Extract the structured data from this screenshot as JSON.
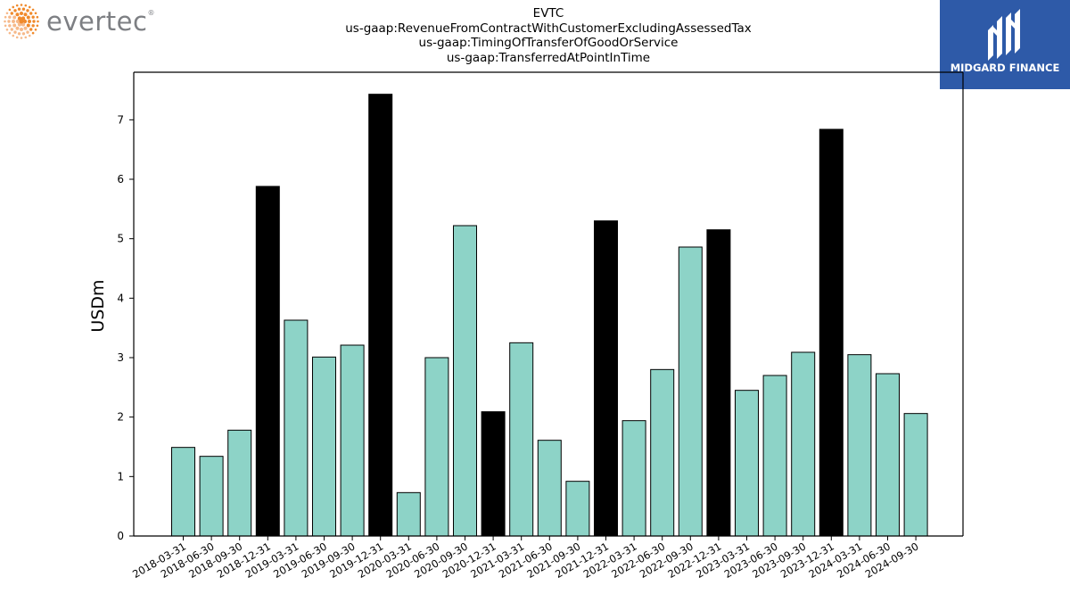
{
  "header": {
    "ticker": "EVTC",
    "concept": "us-gaap:RevenueFromContractWithCustomerExcludingAssessedTax",
    "axis": "us-gaap:TimingOfTransferOfGoodOrService",
    "member": "us-gaap:TransferredAtPointInTime"
  },
  "logos": {
    "left_name": "evertec",
    "left_mark": "®",
    "left_icon": "dot-sunburst-icon",
    "right_name": "MIDGARD FINANCE",
    "right_icon": "midgard-m-icon"
  },
  "colors": {
    "quarter_bar": "#8dd3c7",
    "year_end_bar": "#000000",
    "right_logo_bg": "#2e5aa8",
    "left_logo_accent": "#f08a2c"
  },
  "chart_data": {
    "type": "bar",
    "title": "",
    "xlabel": "",
    "ylabel": "USDm",
    "ylim": [
      0,
      7.8
    ],
    "yticks": [
      0,
      1,
      2,
      3,
      4,
      5,
      6,
      7
    ],
    "grid": false,
    "legend": "none",
    "categories": [
      "2018-03-31",
      "2018-06-30",
      "2018-09-30",
      "2018-12-31",
      "2019-03-31",
      "2019-06-30",
      "2019-09-30",
      "2019-12-31",
      "2020-03-31",
      "2020-06-30",
      "2020-09-30",
      "2020-12-31",
      "2021-03-31",
      "2021-06-30",
      "2021-09-30",
      "2021-12-31",
      "2022-03-31",
      "2022-06-30",
      "2022-09-30",
      "2022-12-31",
      "2023-03-31",
      "2023-06-30",
      "2023-09-30",
      "2023-12-31",
      "2024-03-31",
      "2024-06-30",
      "2024-09-30"
    ],
    "values": [
      1.49,
      1.34,
      1.78,
      5.88,
      3.63,
      3.01,
      3.21,
      7.43,
      0.73,
      3.0,
      5.22,
      2.09,
      3.25,
      1.61,
      0.92,
      5.3,
      1.94,
      2.8,
      4.86,
      5.15,
      2.45,
      2.7,
      3.09,
      6.84,
      3.05,
      2.73,
      2.06
    ]
  }
}
